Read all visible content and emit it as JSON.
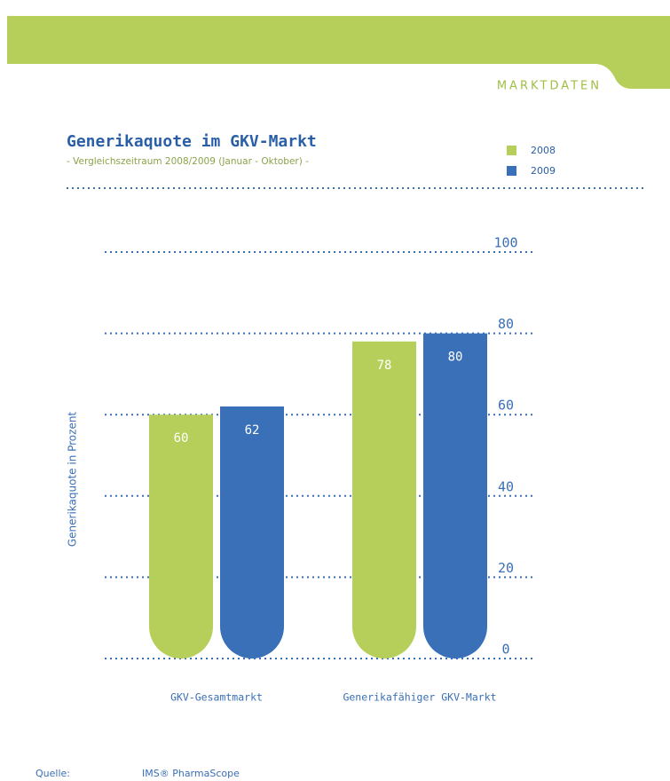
{
  "header": "MARKTDATEN",
  "source": {
    "label": "Quelle:",
    "text": "IMS® PharmaScope"
  },
  "chart_data": {
    "type": "bar",
    "title": "Generikaquote im GKV-Markt",
    "subtitle": "- Vergleichszeitraum 2008/2009 (Januar - Oktober) -",
    "y_label": "Generikaquote in Prozent",
    "categories": [
      "GKV-Gesamtmarkt",
      "Generikafähiger GKV-Markt"
    ],
    "series": [
      {
        "name": "2008",
        "color": "#b5cf5a",
        "values": [
          60,
          78
        ]
      },
      {
        "name": "2009",
        "color": "#3a70b8",
        "values": [
          62,
          80
        ]
      }
    ],
    "ylim": [
      0,
      100
    ],
    "yticks": [
      0,
      20,
      40,
      60,
      80,
      100
    ],
    "grid": true
  }
}
